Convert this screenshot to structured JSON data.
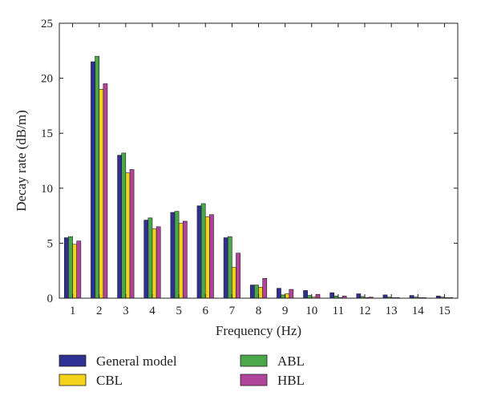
{
  "chart_data": {
    "type": "bar",
    "xlabel": "Frequency (Hz)",
    "ylabel": "Decay rate (dB/m)",
    "ylim": [
      0,
      25
    ],
    "yticks": [
      "0",
      "5",
      "10",
      "15",
      "20",
      "25"
    ],
    "categories": [
      "1",
      "2",
      "3",
      "4",
      "5",
      "6",
      "7",
      "8",
      "9",
      "10",
      "11",
      "12",
      "13",
      "14",
      "15"
    ],
    "legend_position": "bottom",
    "grid": false,
    "series": [
      {
        "name": "General model",
        "color": "#2e3192",
        "values": [
          5.5,
          21.5,
          13.0,
          7.1,
          7.8,
          8.4,
          5.5,
          1.2,
          0.9,
          0.7,
          0.5,
          0.4,
          0.3,
          0.25,
          0.2
        ]
      },
      {
        "name": "ABL",
        "color": "#4aa84b",
        "values": [
          5.6,
          22.0,
          13.2,
          7.3,
          7.9,
          8.6,
          5.6,
          1.2,
          0.3,
          0.25,
          0.2,
          0.15,
          0.1,
          0.1,
          0.1
        ]
      },
      {
        "name": "CBL",
        "color": "#f2d21b",
        "values": [
          4.9,
          19.0,
          11.4,
          6.3,
          6.8,
          7.4,
          2.8,
          1.0,
          0.4,
          0.1,
          0.05,
          0.05,
          0.05,
          0.05,
          0.05
        ]
      },
      {
        "name": "HBL",
        "color": "#b0449a",
        "values": [
          5.2,
          19.5,
          11.7,
          6.5,
          7.0,
          7.6,
          4.1,
          1.8,
          0.8,
          0.35,
          0.2,
          0.1,
          0.05,
          0.05,
          0.05
        ]
      }
    ]
  }
}
